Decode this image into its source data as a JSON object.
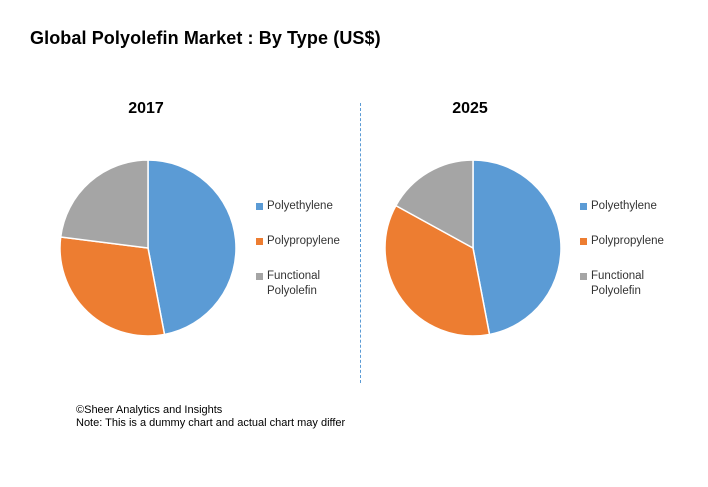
{
  "title": "Global Polyolefin Market : By Type (US$)",
  "chart_data": [
    {
      "type": "pie",
      "title": "2017",
      "labels": [
        "Polyethylene",
        "Polypropylene",
        "Functional Polyolefin"
      ],
      "values": [
        47,
        30,
        23
      ],
      "colors": [
        "#5b9bd5",
        "#ed7d31",
        "#a5a5a5"
      ],
      "legend": "right"
    },
    {
      "type": "pie",
      "title": "2025",
      "labels": [
        "Polyethylene",
        "Polypropylene",
        "Functional Polyolefin"
      ],
      "values": [
        47,
        36,
        17
      ],
      "colors": [
        "#5b9bd5",
        "#ed7d31",
        "#a5a5a5"
      ],
      "legend": "right"
    }
  ],
  "footer": {
    "line1": "©Sheer Analytics and Insights",
    "line2": "Note: This is a dummy chart and actual chart may differ"
  }
}
